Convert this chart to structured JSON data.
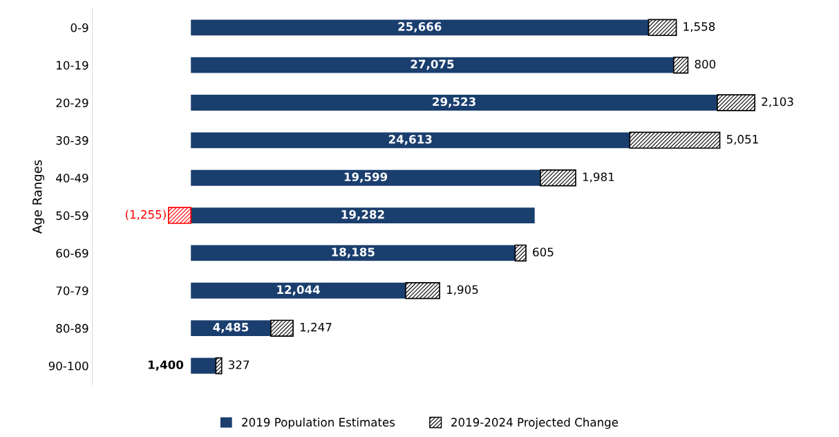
{
  "chart_data": {
    "type": "bar",
    "orientation": "horizontal",
    "stacked": true,
    "ylabel": "Age Ranges",
    "tick_labels": "y",
    "legend": "bottom",
    "grid": false,
    "categories": [
      "0-9",
      "10-19",
      "20-29",
      "30-39",
      "40-49",
      "50-59",
      "60-69",
      "70-79",
      "80-89",
      "90-100"
    ],
    "series": [
      {
        "name": "2019 Population Estimates",
        "color": "#1a3e6e",
        "values": [
          25666,
          27075,
          29523,
          24613,
          19599,
          19282,
          18185,
          12044,
          4485,
          1400
        ],
        "value_labels": [
          "25,666",
          "27,075",
          "29,523",
          "24,613",
          "19,599",
          "19,282",
          "18,185",
          "12,044",
          "4,485",
          "1,400"
        ]
      },
      {
        "name": "2019-2024 Projected Change",
        "color": "#000000",
        "colors": [
          "#000000",
          "#000000",
          "#000000",
          "#000000",
          "#000000",
          "#ff0000",
          "#000000",
          "#000000",
          "#000000",
          "#000000"
        ],
        "values": [
          1558,
          800,
          2103,
          5051,
          1981,
          -1255,
          605,
          1905,
          1247,
          327
        ],
        "value_labels": [
          "1,558",
          "800",
          "2,103",
          "5,051",
          "1,981",
          "(1,255)",
          "605",
          "1,905",
          "1,247",
          "327"
        ]
      }
    ]
  }
}
